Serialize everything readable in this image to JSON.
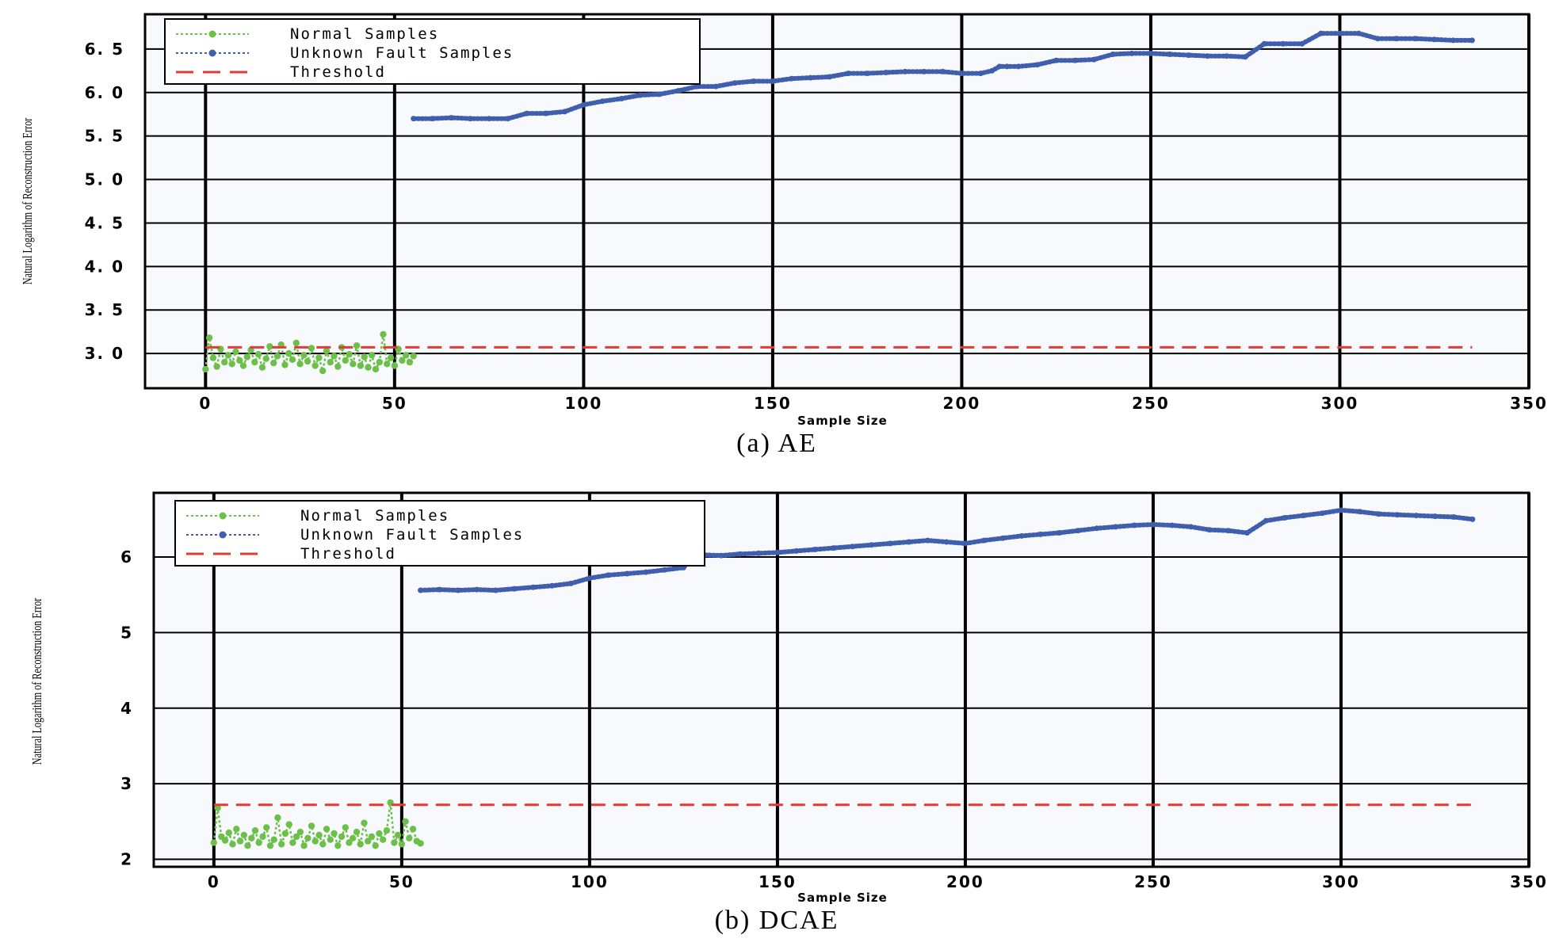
{
  "chart_data": [
    {
      "type": "line",
      "caption": "(a)  AE",
      "xlabel": "Sample Size",
      "ylabel": "Natural Logarithm of Reconstruction Error",
      "xlim": [
        -16,
        350
      ],
      "ylim": [
        2.6,
        6.9
      ],
      "xticks": [
        0,
        50,
        100,
        150,
        200,
        250,
        300,
        350
      ],
      "yticks": [
        3.0,
        3.5,
        4.0,
        4.5,
        5.0,
        5.5,
        6.0,
        6.5
      ],
      "ytick_labels": [
        "3. 0",
        "3. 5",
        "4. 0",
        "4. 5",
        "5. 0",
        "5. 5",
        "6. 0",
        "6. 5"
      ],
      "grid": true,
      "legend_position": "top-left",
      "series": [
        {
          "name": "Normal Samples",
          "color": "#6cc04a",
          "style": "dotted-markers",
          "x": [
            0,
            1,
            2,
            3,
            4,
            5,
            6,
            7,
            8,
            9,
            10,
            11,
            12,
            13,
            14,
            15,
            16,
            17,
            18,
            19,
            20,
            21,
            22,
            23,
            24,
            25,
            26,
            27,
            28,
            29,
            30,
            31,
            32,
            33,
            34,
            35,
            36,
            37,
            38,
            39,
            40,
            41,
            42,
            43,
            44,
            45,
            46,
            47,
            48,
            49,
            50,
            51,
            52,
            53,
            54,
            55
          ],
          "y": [
            2.82,
            3.18,
            2.95,
            2.85,
            3.05,
            2.9,
            2.98,
            2.88,
            3.02,
            2.92,
            2.86,
            2.96,
            3.04,
            2.9,
            2.99,
            2.84,
            2.94,
            3.08,
            2.89,
            2.97,
            3.1,
            2.87,
            3.0,
            2.93,
            3.12,
            2.88,
            2.98,
            2.91,
            3.06,
            2.86,
            2.95,
            2.8,
            3.03,
            2.9,
            2.97,
            2.85,
            3.07,
            2.92,
            2.99,
            2.88,
            3.09,
            2.86,
            2.96,
            2.84,
            2.98,
            2.82,
            2.9,
            3.22,
            2.88,
            2.95,
            2.86,
            3.05,
            2.92,
            2.98,
            2.9,
            2.97
          ]
        },
        {
          "name": "Unknown Fault Samples",
          "color": "#3f5fae",
          "style": "dotted-markers",
          "x": [
            55,
            60,
            65,
            70,
            75,
            80,
            85,
            90,
            95,
            100,
            105,
            110,
            115,
            120,
            125,
            130,
            135,
            140,
            145,
            150,
            155,
            160,
            165,
            170,
            175,
            180,
            185,
            190,
            195,
            200,
            205,
            208,
            210,
            212,
            215,
            220,
            225,
            230,
            235,
            240,
            245,
            250,
            255,
            260,
            265,
            270,
            275,
            280,
            285,
            290,
            295,
            300,
            305,
            310,
            315,
            320,
            325,
            330,
            335
          ],
          "y": [
            5.7,
            5.7,
            5.71,
            5.7,
            5.7,
            5.7,
            5.76,
            5.76,
            5.78,
            5.86,
            5.9,
            5.93,
            5.97,
            5.98,
            6.02,
            6.07,
            6.07,
            6.11,
            6.13,
            6.13,
            6.16,
            6.17,
            6.18,
            6.22,
            6.22,
            6.23,
            6.24,
            6.24,
            6.24,
            6.22,
            6.22,
            6.25,
            6.3,
            6.3,
            6.3,
            6.32,
            6.37,
            6.37,
            6.38,
            6.44,
            6.45,
            6.45,
            6.44,
            6.43,
            6.42,
            6.42,
            6.41,
            6.56,
            6.56,
            6.56,
            6.68,
            6.68,
            6.68,
            6.62,
            6.62,
            6.62,
            6.61,
            6.6,
            6.6
          ]
        },
        {
          "name": "Threshold",
          "color": "#e53a33",
          "style": "dashed",
          "x": [
            0,
            335
          ],
          "y": [
            3.07,
            3.07
          ]
        }
      ]
    },
    {
      "type": "line",
      "caption": "(b)  DCAE",
      "xlabel": "Sample Size",
      "ylabel": "Natural Logarithm of Reconstruction Error",
      "xlim": [
        -16,
        350
      ],
      "ylim": [
        1.9,
        6.85
      ],
      "xticks": [
        0,
        50,
        100,
        150,
        200,
        250,
        300,
        350
      ],
      "yticks": [
        2,
        3,
        4,
        5,
        6
      ],
      "ytick_labels": [
        "2",
        "3",
        "4",
        "5",
        "6"
      ],
      "grid": true,
      "legend_position": "top-left",
      "series": [
        {
          "name": "Normal Samples",
          "color": "#6cc04a",
          "style": "dotted-markers",
          "x": [
            0,
            1,
            2,
            3,
            4,
            5,
            6,
            7,
            8,
            9,
            10,
            11,
            12,
            13,
            14,
            15,
            16,
            17,
            18,
            19,
            20,
            21,
            22,
            23,
            24,
            25,
            26,
            27,
            28,
            29,
            30,
            31,
            32,
            33,
            34,
            35,
            36,
            37,
            38,
            39,
            40,
            41,
            42,
            43,
            44,
            45,
            46,
            47,
            48,
            49,
            50,
            51,
            52,
            53,
            54,
            55
          ],
          "y": [
            2.22,
            2.68,
            2.3,
            2.25,
            2.35,
            2.2,
            2.4,
            2.24,
            2.32,
            2.18,
            2.28,
            2.38,
            2.22,
            2.3,
            2.42,
            2.18,
            2.26,
            2.55,
            2.2,
            2.34,
            2.46,
            2.22,
            2.3,
            2.36,
            2.18,
            2.28,
            2.44,
            2.24,
            2.32,
            2.2,
            2.4,
            2.26,
            2.34,
            2.18,
            2.3,
            2.42,
            2.22,
            2.28,
            2.36,
            2.2,
            2.48,
            2.24,
            2.3,
            2.18,
            2.34,
            2.26,
            2.38,
            2.75,
            2.22,
            2.32,
            2.2,
            2.5,
            2.28,
            2.4,
            2.24,
            2.21
          ]
        },
        {
          "name": "Unknown Fault Samples",
          "color": "#3f5fae",
          "style": "dotted-markers",
          "x": [
            55,
            60,
            65,
            70,
            75,
            80,
            85,
            90,
            95,
            100,
            105,
            110,
            115,
            120,
            125,
            128,
            130,
            135,
            140,
            145,
            150,
            155,
            160,
            165,
            170,
            175,
            180,
            185,
            190,
            195,
            200,
            205,
            210,
            215,
            220,
            225,
            230,
            235,
            240,
            245,
            250,
            255,
            260,
            265,
            270,
            275,
            280,
            285,
            290,
            295,
            300,
            305,
            310,
            315,
            320,
            325,
            330,
            335
          ],
          "y": [
            5.56,
            5.57,
            5.56,
            5.57,
            5.56,
            5.58,
            5.6,
            5.62,
            5.65,
            5.72,
            5.76,
            5.78,
            5.8,
            5.83,
            5.86,
            6.05,
            6.03,
            6.02,
            6.04,
            6.05,
            6.06,
            6.08,
            6.1,
            6.12,
            6.14,
            6.16,
            6.18,
            6.2,
            6.22,
            6.2,
            6.18,
            6.22,
            6.25,
            6.28,
            6.3,
            6.32,
            6.35,
            6.38,
            6.4,
            6.42,
            6.43,
            6.42,
            6.4,
            6.36,
            6.35,
            6.32,
            6.48,
            6.52,
            6.55,
            6.58,
            6.62,
            6.6,
            6.57,
            6.56,
            6.55,
            6.54,
            6.53,
            6.5
          ]
        },
        {
          "name": "Threshold",
          "color": "#e53a33",
          "style": "dashed",
          "x": [
            0,
            335
          ],
          "y": [
            2.72,
            2.72
          ]
        }
      ]
    }
  ]
}
